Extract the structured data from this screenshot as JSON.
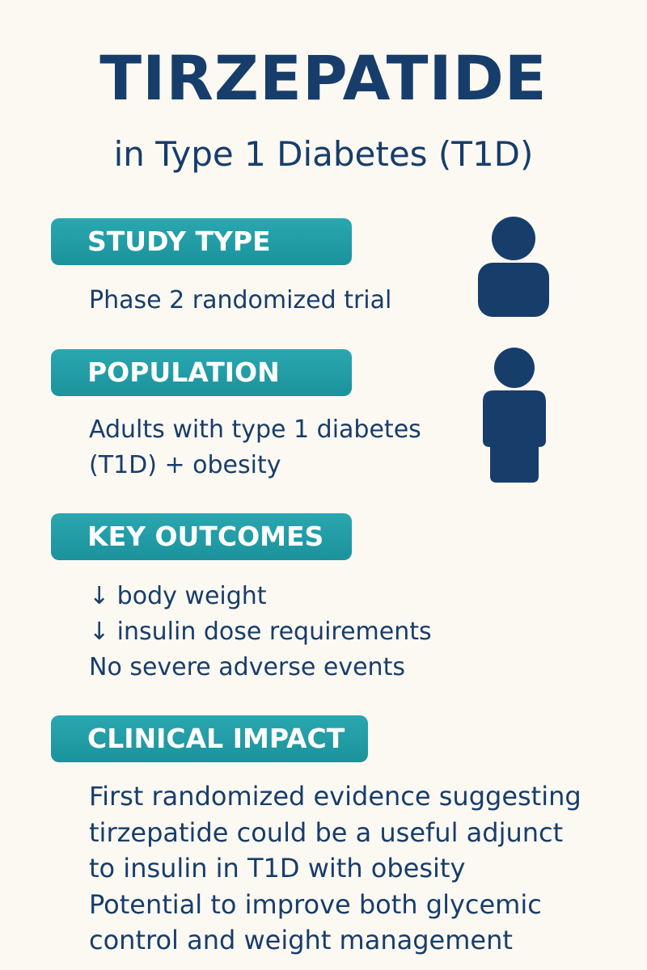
{
  "header": {
    "title": "TIRZEPATIDE",
    "subtitle": "in Type 1 Diabetes (T1D)"
  },
  "sections": [
    {
      "heading": "STUDY TYPE",
      "lines": [
        "Phase 2 randomized trial"
      ]
    },
    {
      "heading": "POPULATION",
      "lines": [
        "Adults with type 1 diabetes",
        "(T1D) + obesity"
      ]
    },
    {
      "heading": "KEY OUTCOMES",
      "lines": [
        "↓ body weight",
        "↓ insulin dose requirements",
        "No severe adverse events"
      ]
    },
    {
      "heading": "CLINICAL IMPACT",
      "lines": [
        "First randomized evidence suggesting",
        "tirzepatide could be a useful adjunct",
        "to insulin in T1D with obesity",
        "Potential to improve both glycemic",
        "control and weight management"
      ]
    }
  ]
}
